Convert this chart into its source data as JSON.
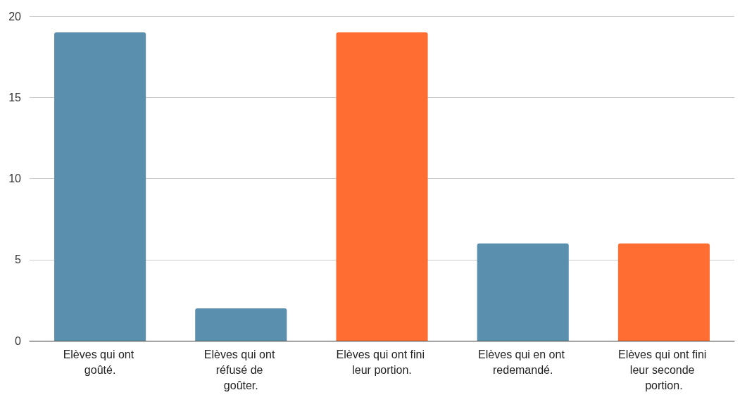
{
  "chart_data": {
    "type": "bar",
    "categories": [
      "Elèves qui ont goûté.",
      "Elèves qui ont réfusé de goûter.",
      "Elèves qui ont fini leur portion.",
      "Elèves qui en ont redemandé.",
      "Elèves qui ont fini leur seconde portion."
    ],
    "values": [
      19,
      2,
      19,
      6,
      6
    ],
    "colors": [
      "#5a8fae",
      "#5a8fae",
      "#ff6d33",
      "#5a8fae",
      "#ff6d33"
    ],
    "ylim": [
      0,
      20
    ],
    "yticks": [
      0,
      5,
      10,
      15,
      20
    ],
    "grid": "y"
  }
}
